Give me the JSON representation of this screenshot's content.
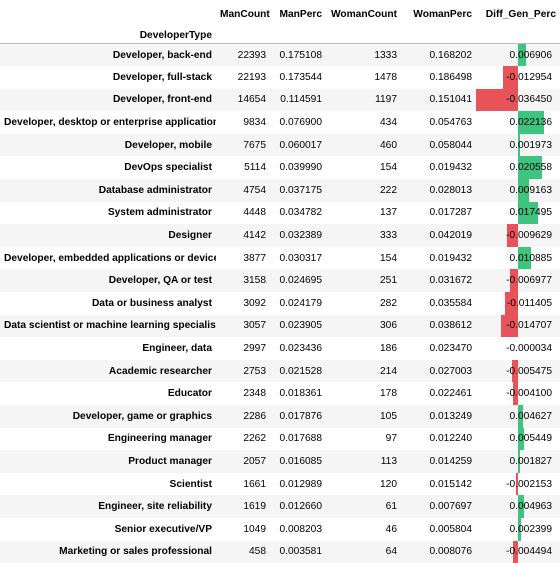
{
  "table": {
    "columns": [
      "ManCount",
      "ManPerc",
      "WomanCount",
      "WomanPerc",
      "Diff_Gen_Perc"
    ],
    "index_name": "DeveloperType",
    "colors": {
      "positive": "#3dc47e",
      "negative": "#e8535a"
    },
    "rows": [
      {
        "label": "Developer, back-end",
        "man_count": "22393",
        "man_perc": "0.175108",
        "woman_count": "1333",
        "woman_perc": "0.168202",
        "diff": "0.006906"
      },
      {
        "label": "Developer, full-stack",
        "man_count": "22193",
        "man_perc": "0.173544",
        "woman_count": "1478",
        "woman_perc": "0.186498",
        "diff": "-0.012954"
      },
      {
        "label": "Developer, front-end",
        "man_count": "14654",
        "man_perc": "0.114591",
        "woman_count": "1197",
        "woman_perc": "0.151041",
        "diff": "-0.036450"
      },
      {
        "label": "Developer, desktop or enterprise applications",
        "man_count": "9834",
        "man_perc": "0.076900",
        "woman_count": "434",
        "woman_perc": "0.054763",
        "diff": "0.022136"
      },
      {
        "label": "Developer, mobile",
        "man_count": "7675",
        "man_perc": "0.060017",
        "woman_count": "460",
        "woman_perc": "0.058044",
        "diff": "0.001973"
      },
      {
        "label": "DevOps specialist",
        "man_count": "5114",
        "man_perc": "0.039990",
        "woman_count": "154",
        "woman_perc": "0.019432",
        "diff": "0.020558"
      },
      {
        "label": "Database administrator",
        "man_count": "4754",
        "man_perc": "0.037175",
        "woman_count": "222",
        "woman_perc": "0.028013",
        "diff": "0.009163"
      },
      {
        "label": "System administrator",
        "man_count": "4448",
        "man_perc": "0.034782",
        "woman_count": "137",
        "woman_perc": "0.017287",
        "diff": "0.017495"
      },
      {
        "label": "Designer",
        "man_count": "4142",
        "man_perc": "0.032389",
        "woman_count": "333",
        "woman_perc": "0.042019",
        "diff": "-0.009629"
      },
      {
        "label": "Developer, embedded applications or devices",
        "man_count": "3877",
        "man_perc": "0.030317",
        "woman_count": "154",
        "woman_perc": "0.019432",
        "diff": "0.010885"
      },
      {
        "label": "Developer, QA or test",
        "man_count": "3158",
        "man_perc": "0.024695",
        "woman_count": "251",
        "woman_perc": "0.031672",
        "diff": "-0.006977"
      },
      {
        "label": "Data or business analyst",
        "man_count": "3092",
        "man_perc": "0.024179",
        "woman_count": "282",
        "woman_perc": "0.035584",
        "diff": "-0.011405"
      },
      {
        "label": "Data scientist or machine learning specialist",
        "man_count": "3057",
        "man_perc": "0.023905",
        "woman_count": "306",
        "woman_perc": "0.038612",
        "diff": "-0.014707"
      },
      {
        "label": "Engineer, data",
        "man_count": "2997",
        "man_perc": "0.023436",
        "woman_count": "186",
        "woman_perc": "0.023470",
        "diff": "-0.000034"
      },
      {
        "label": "Academic researcher",
        "man_count": "2753",
        "man_perc": "0.021528",
        "woman_count": "214",
        "woman_perc": "0.027003",
        "diff": "-0.005475"
      },
      {
        "label": "Educator",
        "man_count": "2348",
        "man_perc": "0.018361",
        "woman_count": "178",
        "woman_perc": "0.022461",
        "diff": "-0.004100"
      },
      {
        "label": "Developer, game or graphics",
        "man_count": "2286",
        "man_perc": "0.017876",
        "woman_count": "105",
        "woman_perc": "0.013249",
        "diff": "0.004627"
      },
      {
        "label": "Engineering manager",
        "man_count": "2262",
        "man_perc": "0.017688",
        "woman_count": "97",
        "woman_perc": "0.012240",
        "diff": "0.005449"
      },
      {
        "label": "Product manager",
        "man_count": "2057",
        "man_perc": "0.016085",
        "woman_count": "113",
        "woman_perc": "0.014259",
        "diff": "0.001827"
      },
      {
        "label": "Scientist",
        "man_count": "1661",
        "man_perc": "0.012989",
        "woman_count": "120",
        "woman_perc": "0.015142",
        "diff": "-0.002153"
      },
      {
        "label": "Engineer, site reliability",
        "man_count": "1619",
        "man_perc": "0.012660",
        "woman_count": "61",
        "woman_perc": "0.007697",
        "diff": "0.004963"
      },
      {
        "label": "Senior executive/VP",
        "man_count": "1049",
        "man_perc": "0.008203",
        "woman_count": "46",
        "woman_perc": "0.005804",
        "diff": "0.002399"
      },
      {
        "label": "Marketing or sales professional",
        "man_count": "458",
        "man_perc": "0.003581",
        "woman_count": "64",
        "woman_perc": "0.008076",
        "diff": "-0.004494"
      }
    ]
  }
}
